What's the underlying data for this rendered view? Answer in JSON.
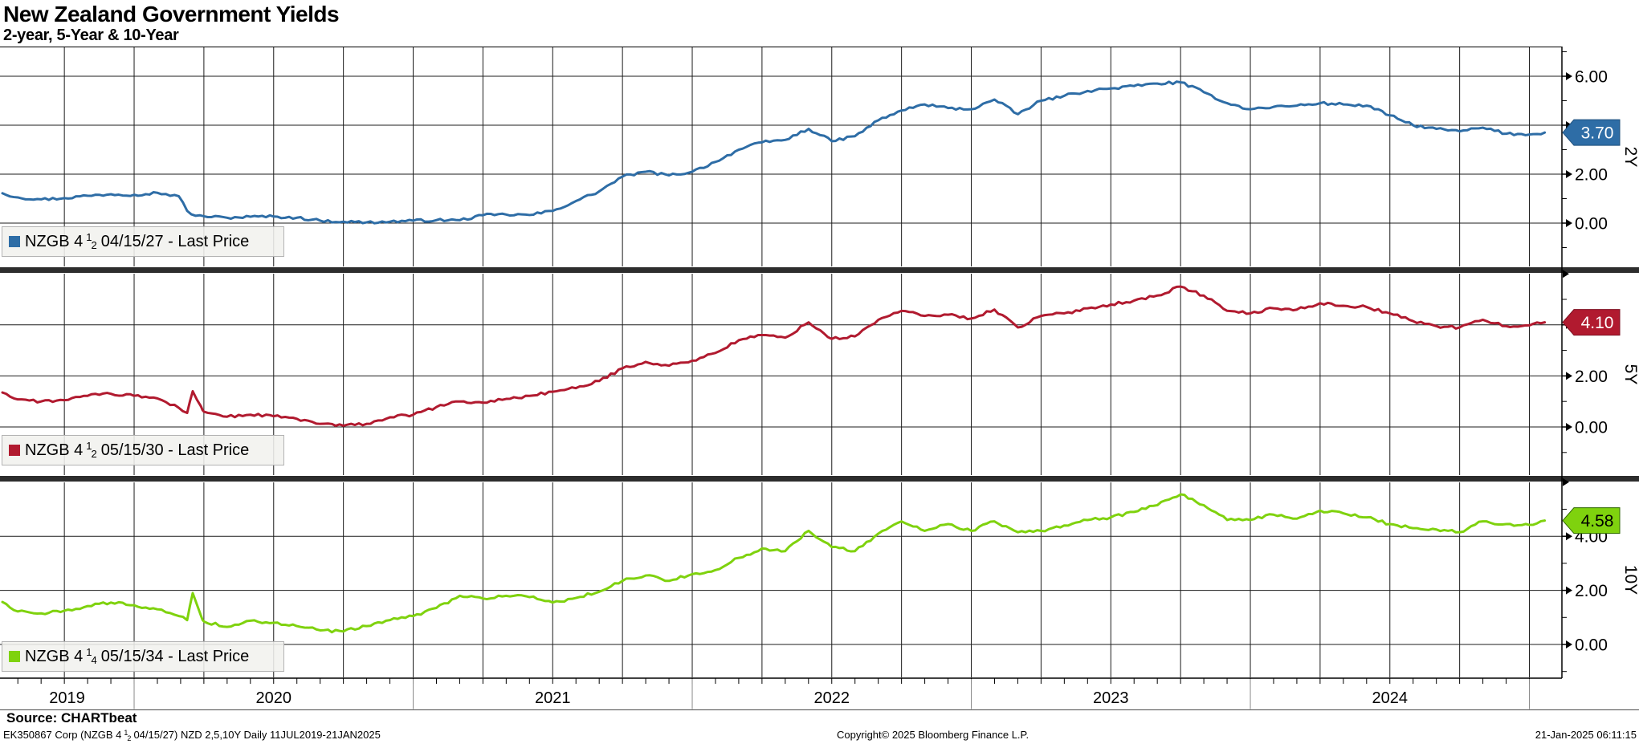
{
  "header": {
    "title": "New Zealand Government Yields",
    "subtitle": "2-year, 5-Year & 10-Year"
  },
  "source_line": "Source: CHARTbeat",
  "footer": {
    "left_parts": {
      "p1": "EK350867 Corp (NZGB 4",
      "num": "1",
      "den": "2",
      "p2": "04/15/27) NZD 2,5,10Y  Daily 11JUL2019-21JAN2025"
    },
    "center": "Copyright© 2025 Bloomberg Finance L.P.",
    "right": "21-Jan-2025 06:11:15"
  },
  "chart_data": {
    "type": "line",
    "title": "New Zealand Government Yields",
    "subtitle": "2-year, 5-Year & 10-Year",
    "x_range": {
      "start_label": "11JUL2019",
      "end_label": "21JAN2025",
      "start_decimal": 2019.528,
      "end_decimal": 2025.055
    },
    "x_axis_year_labels": [
      "2019",
      "2020",
      "2021",
      "2022",
      "2023",
      "2024"
    ],
    "grid": {
      "horizontal_interval": 2,
      "vertical_interval_years": 0.25
    },
    "panels": [
      {
        "name": "2Y",
        "axis_label": "2Y",
        "legend": {
          "prefix": "NZGB 4",
          "num": "1",
          "den": "2",
          "suffix": "04/15/27 - Last Price"
        },
        "color": "#2e6da6",
        "flag_text_color": "#ffffff",
        "flag_stroke": "#1d4f7c",
        "last_price_label": "3.70",
        "last_value": 3.7,
        "y_ticks": [
          {
            "v": 6,
            "label": "6.00"
          },
          {
            "v": 4,
            "label": "4.00"
          },
          {
            "v": 2,
            "label": "2.00"
          },
          {
            "v": 0,
            "label": "0.00"
          }
        ],
        "edge_tick": null,
        "points": [
          [
            2019.528,
            1.22
          ],
          [
            2019.583,
            1.05
          ],
          [
            2019.667,
            0.97
          ],
          [
            2019.75,
            1.02
          ],
          [
            2019.833,
            1.12
          ],
          [
            2019.917,
            1.18
          ],
          [
            2020.0,
            1.16
          ],
          [
            2020.083,
            1.24
          ],
          [
            2020.16,
            1.1
          ],
          [
            2020.19,
            0.5
          ],
          [
            2020.22,
            0.3
          ],
          [
            2020.25,
            0.28
          ],
          [
            2020.333,
            0.22
          ],
          [
            2020.417,
            0.26
          ],
          [
            2020.5,
            0.27
          ],
          [
            2020.583,
            0.22
          ],
          [
            2020.667,
            0.1
          ],
          [
            2020.75,
            0.06
          ],
          [
            2020.833,
            0.03
          ],
          [
            2020.917,
            0.06
          ],
          [
            2021.0,
            0.1
          ],
          [
            2021.083,
            0.12
          ],
          [
            2021.167,
            0.12
          ],
          [
            2021.25,
            0.32
          ],
          [
            2021.333,
            0.35
          ],
          [
            2021.417,
            0.33
          ],
          [
            2021.5,
            0.5
          ],
          [
            2021.583,
            0.9
          ],
          [
            2021.667,
            1.3
          ],
          [
            2021.75,
            1.9
          ],
          [
            2021.833,
            2.1
          ],
          [
            2021.917,
            1.95
          ],
          [
            2022.0,
            2.1
          ],
          [
            2022.083,
            2.5
          ],
          [
            2022.167,
            3.0
          ],
          [
            2022.25,
            3.3
          ],
          [
            2022.333,
            3.4
          ],
          [
            2022.417,
            3.85
          ],
          [
            2022.5,
            3.35
          ],
          [
            2022.583,
            3.55
          ],
          [
            2022.667,
            4.2
          ],
          [
            2022.75,
            4.6
          ],
          [
            2022.833,
            4.85
          ],
          [
            2022.917,
            4.7
          ],
          [
            2023.0,
            4.65
          ],
          [
            2023.083,
            5.05
          ],
          [
            2023.167,
            4.45
          ],
          [
            2023.25,
            5.0
          ],
          [
            2023.333,
            5.2
          ],
          [
            2023.417,
            5.4
          ],
          [
            2023.5,
            5.5
          ],
          [
            2023.583,
            5.6
          ],
          [
            2023.667,
            5.7
          ],
          [
            2023.75,
            5.75
          ],
          [
            2023.833,
            5.35
          ],
          [
            2023.917,
            4.9
          ],
          [
            2024.0,
            4.65
          ],
          [
            2024.083,
            4.75
          ],
          [
            2024.167,
            4.8
          ],
          [
            2024.25,
            4.9
          ],
          [
            2024.333,
            4.85
          ],
          [
            2024.417,
            4.8
          ],
          [
            2024.5,
            4.4
          ],
          [
            2024.583,
            4.0
          ],
          [
            2024.667,
            3.85
          ],
          [
            2024.75,
            3.75
          ],
          [
            2024.833,
            3.9
          ],
          [
            2024.917,
            3.65
          ],
          [
            2025.0,
            3.62
          ],
          [
            2025.055,
            3.7
          ]
        ]
      },
      {
        "name": "5Y",
        "axis_label": "5Y",
        "legend": {
          "prefix": "NZGB 4",
          "num": "1",
          "den": "2",
          "suffix": "05/15/30 - Last Price"
        },
        "color": "#b11a2f",
        "flag_text_color": "#ffffff",
        "flag_stroke": "#7d0f20",
        "last_price_label": "4.10",
        "last_value": 4.1,
        "y_ticks": [
          {
            "v": 4,
            "label": "4.00"
          },
          {
            "v": 2,
            "label": "2.00"
          },
          {
            "v": 0,
            "label": "0.00"
          }
        ],
        "edge_tick": 6,
        "points": [
          [
            2019.528,
            1.35
          ],
          [
            2019.583,
            1.08
          ],
          [
            2019.667,
            1.0
          ],
          [
            2019.75,
            1.05
          ],
          [
            2019.833,
            1.22
          ],
          [
            2019.917,
            1.3
          ],
          [
            2020.0,
            1.22
          ],
          [
            2020.083,
            1.12
          ],
          [
            2020.16,
            0.75
          ],
          [
            2020.19,
            0.55
          ],
          [
            2020.21,
            1.4
          ],
          [
            2020.24,
            0.8
          ],
          [
            2020.25,
            0.6
          ],
          [
            2020.333,
            0.4
          ],
          [
            2020.417,
            0.48
          ],
          [
            2020.5,
            0.42
          ],
          [
            2020.583,
            0.32
          ],
          [
            2020.667,
            0.12
          ],
          [
            2020.75,
            0.05
          ],
          [
            2020.833,
            0.12
          ],
          [
            2020.917,
            0.38
          ],
          [
            2021.0,
            0.48
          ],
          [
            2021.083,
            0.78
          ],
          [
            2021.167,
            1.0
          ],
          [
            2021.25,
            0.95
          ],
          [
            2021.333,
            1.1
          ],
          [
            2021.417,
            1.22
          ],
          [
            2021.5,
            1.38
          ],
          [
            2021.583,
            1.52
          ],
          [
            2021.667,
            1.8
          ],
          [
            2021.75,
            2.3
          ],
          [
            2021.833,
            2.55
          ],
          [
            2021.917,
            2.4
          ],
          [
            2022.0,
            2.6
          ],
          [
            2022.083,
            2.9
          ],
          [
            2022.167,
            3.4
          ],
          [
            2022.25,
            3.6
          ],
          [
            2022.333,
            3.5
          ],
          [
            2022.417,
            4.1
          ],
          [
            2022.5,
            3.45
          ],
          [
            2022.583,
            3.55
          ],
          [
            2022.667,
            4.2
          ],
          [
            2022.75,
            4.55
          ],
          [
            2022.833,
            4.35
          ],
          [
            2022.917,
            4.4
          ],
          [
            2023.0,
            4.25
          ],
          [
            2023.083,
            4.6
          ],
          [
            2023.167,
            3.9
          ],
          [
            2023.25,
            4.35
          ],
          [
            2023.333,
            4.45
          ],
          [
            2023.417,
            4.65
          ],
          [
            2023.5,
            4.8
          ],
          [
            2023.583,
            4.95
          ],
          [
            2023.667,
            5.15
          ],
          [
            2023.75,
            5.5
          ],
          [
            2023.833,
            5.15
          ],
          [
            2023.917,
            4.55
          ],
          [
            2024.0,
            4.45
          ],
          [
            2024.083,
            4.65
          ],
          [
            2024.167,
            4.6
          ],
          [
            2024.25,
            4.85
          ],
          [
            2024.333,
            4.75
          ],
          [
            2024.417,
            4.7
          ],
          [
            2024.5,
            4.45
          ],
          [
            2024.583,
            4.15
          ],
          [
            2024.667,
            3.95
          ],
          [
            2024.75,
            3.9
          ],
          [
            2024.833,
            4.2
          ],
          [
            2024.917,
            3.95
          ],
          [
            2025.0,
            3.98
          ],
          [
            2025.055,
            4.1
          ]
        ]
      },
      {
        "name": "10Y",
        "axis_label": "10Y",
        "legend": {
          "prefix": "NZGB 4",
          "num": "1",
          "den": "4",
          "suffix": "05/15/34 - Last Price"
        },
        "color": "#7fd20e",
        "flag_text_color": "#000000",
        "flag_stroke": "#2f6700",
        "last_price_label": "4.58",
        "last_value": 4.58,
        "y_ticks": [
          {
            "v": 4,
            "label": "4.00"
          },
          {
            "v": 2,
            "label": "2.00"
          },
          {
            "v": 0,
            "label": "0.00"
          }
        ],
        "edge_tick": 6,
        "points": [
          [
            2019.528,
            1.57
          ],
          [
            2019.583,
            1.22
          ],
          [
            2019.667,
            1.15
          ],
          [
            2019.75,
            1.25
          ],
          [
            2019.833,
            1.42
          ],
          [
            2019.917,
            1.55
          ],
          [
            2020.0,
            1.45
          ],
          [
            2020.083,
            1.3
          ],
          [
            2020.16,
            1.05
          ],
          [
            2020.19,
            0.9
          ],
          [
            2020.21,
            1.9
          ],
          [
            2020.24,
            1.05
          ],
          [
            2020.25,
            0.85
          ],
          [
            2020.333,
            0.65
          ],
          [
            2020.417,
            0.88
          ],
          [
            2020.5,
            0.8
          ],
          [
            2020.583,
            0.68
          ],
          [
            2020.667,
            0.52
          ],
          [
            2020.75,
            0.48
          ],
          [
            2020.833,
            0.68
          ],
          [
            2020.917,
            0.9
          ],
          [
            2021.0,
            1.05
          ],
          [
            2021.083,
            1.35
          ],
          [
            2021.167,
            1.8
          ],
          [
            2021.25,
            1.7
          ],
          [
            2021.333,
            1.8
          ],
          [
            2021.417,
            1.75
          ],
          [
            2021.5,
            1.55
          ],
          [
            2021.583,
            1.72
          ],
          [
            2021.667,
            1.95
          ],
          [
            2021.75,
            2.35
          ],
          [
            2021.833,
            2.55
          ],
          [
            2021.917,
            2.35
          ],
          [
            2022.0,
            2.6
          ],
          [
            2022.083,
            2.75
          ],
          [
            2022.167,
            3.2
          ],
          [
            2022.25,
            3.55
          ],
          [
            2022.333,
            3.45
          ],
          [
            2022.417,
            4.2
          ],
          [
            2022.5,
            3.6
          ],
          [
            2022.583,
            3.45
          ],
          [
            2022.667,
            4.1
          ],
          [
            2022.75,
            4.55
          ],
          [
            2022.833,
            4.2
          ],
          [
            2022.917,
            4.45
          ],
          [
            2023.0,
            4.2
          ],
          [
            2023.083,
            4.55
          ],
          [
            2023.167,
            4.15
          ],
          [
            2023.25,
            4.2
          ],
          [
            2023.333,
            4.4
          ],
          [
            2023.417,
            4.6
          ],
          [
            2023.5,
            4.7
          ],
          [
            2023.583,
            4.9
          ],
          [
            2023.667,
            5.15
          ],
          [
            2023.75,
            5.55
          ],
          [
            2023.833,
            5.15
          ],
          [
            2023.917,
            4.6
          ],
          [
            2024.0,
            4.6
          ],
          [
            2024.083,
            4.8
          ],
          [
            2024.167,
            4.65
          ],
          [
            2024.25,
            4.95
          ],
          [
            2024.333,
            4.85
          ],
          [
            2024.417,
            4.7
          ],
          [
            2024.5,
            4.45
          ],
          [
            2024.583,
            4.3
          ],
          [
            2024.667,
            4.25
          ],
          [
            2024.75,
            4.15
          ],
          [
            2024.833,
            4.55
          ],
          [
            2024.917,
            4.45
          ],
          [
            2025.0,
            4.42
          ],
          [
            2025.055,
            4.58
          ]
        ]
      }
    ]
  }
}
